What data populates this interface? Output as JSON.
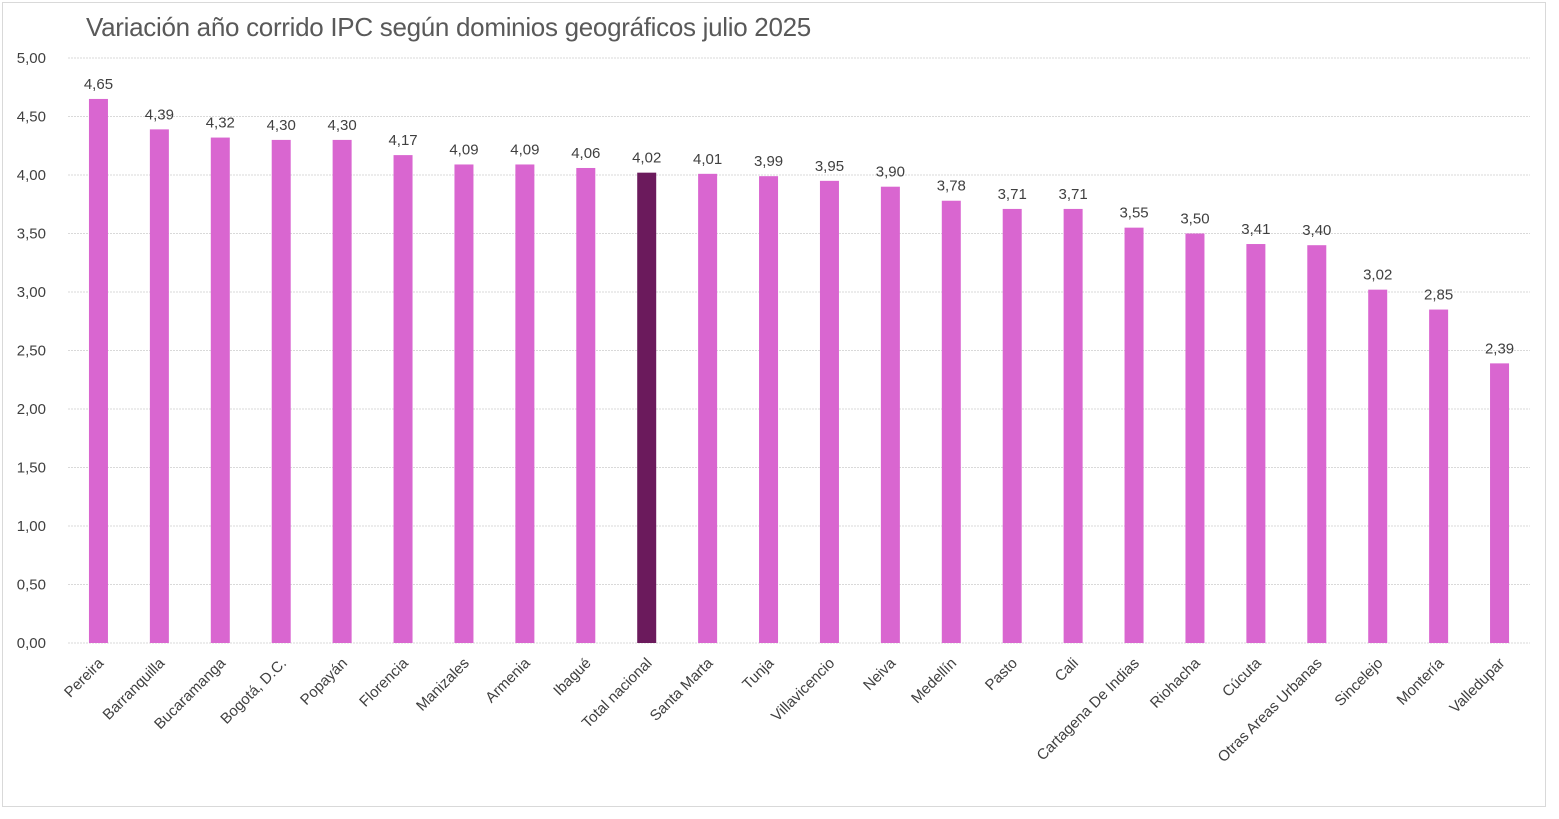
{
  "chart_data": {
    "type": "bar",
    "title": "Variación año corrido IPC según dominios geográficos julio 2025",
    "xlabel": "",
    "ylabel": "",
    "ylim": [
      0,
      5
    ],
    "yticks": [
      "0,00",
      "0,50",
      "1,00",
      "1,50",
      "2,00",
      "2,50",
      "3,00",
      "3,50",
      "4,00",
      "4,50",
      "5,00"
    ],
    "ytick_values": [
      0,
      0.5,
      1,
      1.5,
      2,
      2.5,
      3,
      3.5,
      4,
      4.5,
      5
    ],
    "grid": true,
    "legend": "none",
    "colors": {
      "default": "#d966d0",
      "highlight": "#6b1a5c",
      "grid": "#d9d9d9",
      "text": "#404040"
    },
    "highlight_category": "Total nacional",
    "categories": [
      "Pereira",
      "Barranquilla",
      "Bucaramanga",
      "Bogotá, D.C.",
      "Popayán",
      "Florencia",
      "Manizales",
      "Armenia",
      "Ibagué",
      "Total nacional",
      "Santa Marta",
      "Tunja",
      "Villavicencio",
      "Neiva",
      "Medellín",
      "Pasto",
      "Cali",
      "Cartagena De Indias",
      "Riohacha",
      "Cúcuta",
      "Otras Areas Urbanas",
      "Sincelejo",
      "Montería",
      "Valledupar"
    ],
    "values": [
      4.65,
      4.39,
      4.32,
      4.3,
      4.3,
      4.17,
      4.09,
      4.09,
      4.06,
      4.02,
      4.01,
      3.99,
      3.95,
      3.9,
      3.78,
      3.71,
      3.71,
      3.55,
      3.5,
      3.41,
      3.4,
      3.02,
      2.85,
      2.39
    ],
    "data_labels": [
      "4,65",
      "4,39",
      "4,32",
      "4,30",
      "4,30",
      "4,17",
      "4,09",
      "4,09",
      "4,06",
      "4,02",
      "4,01",
      "3,99",
      "3,95",
      "3,90",
      "3,78",
      "3,71",
      "3,71",
      "3,55",
      "3,50",
      "3,41",
      "3,40",
      "3,02",
      "2,85",
      "2,39"
    ]
  }
}
